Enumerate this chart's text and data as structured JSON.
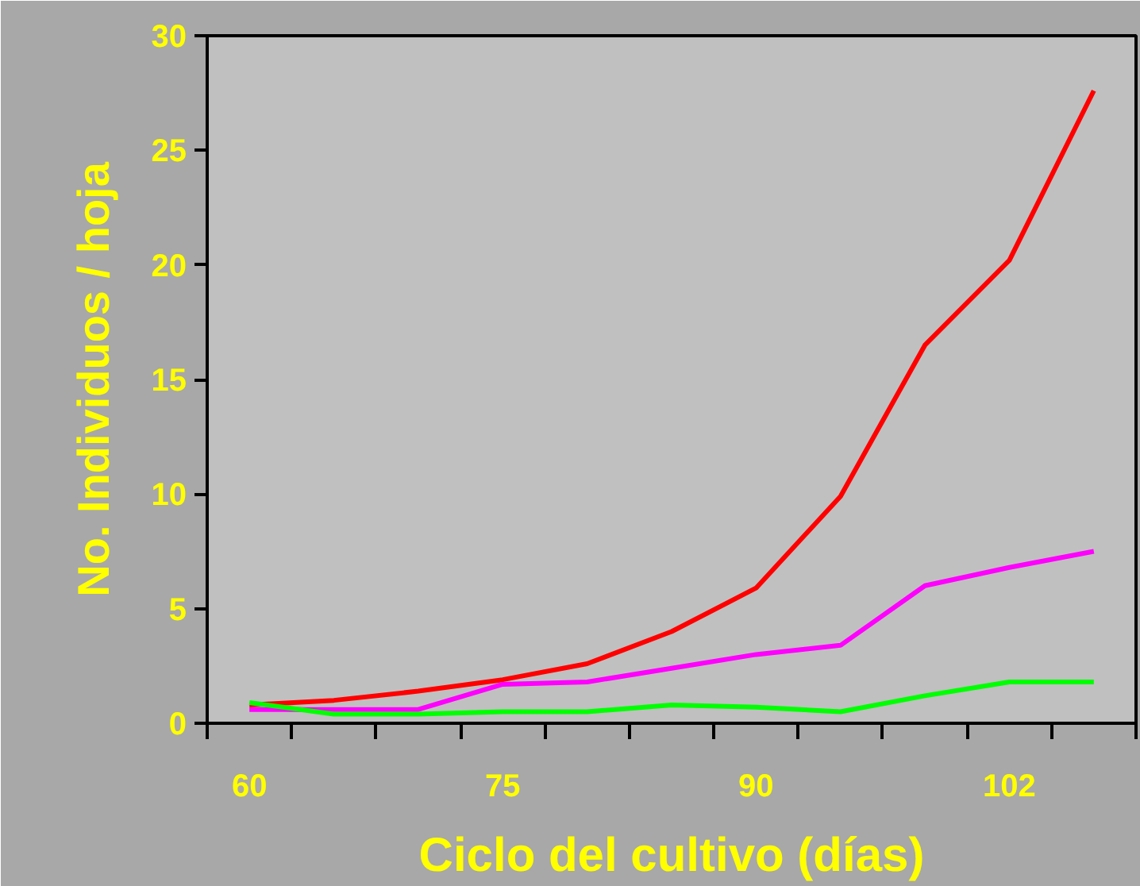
{
  "chart_data": {
    "type": "line",
    "xlabel": "Ciclo del cultivo (días)",
    "ylabel": "No. Individuos / hoja",
    "categories": [
      "60",
      null,
      null,
      "75",
      null,
      null,
      "90",
      null,
      null,
      "102",
      null
    ],
    "series": [
      {
        "color": "#ff0000",
        "values": [
          0.8,
          1.0,
          1.4,
          1.9,
          2.6,
          4.0,
          5.9,
          9.9,
          16.5,
          20.2,
          27.6
        ]
      },
      {
        "color": "#ff00ff",
        "values": [
          0.6,
          0.6,
          0.6,
          1.7,
          1.8,
          2.4,
          3.0,
          3.4,
          6.0,
          6.8,
          7.5
        ]
      },
      {
        "color": "#00ff00",
        "values": [
          0.9,
          0.4,
          0.4,
          0.5,
          0.5,
          0.8,
          0.7,
          0.5,
          1.2,
          1.8,
          1.8
        ]
      }
    ],
    "ylim": [
      0,
      30
    ],
    "yticks": [
      0,
      5,
      10,
      15,
      20,
      25,
      30
    ],
    "grid": false,
    "marker": "none",
    "line_style": "solid"
  }
}
